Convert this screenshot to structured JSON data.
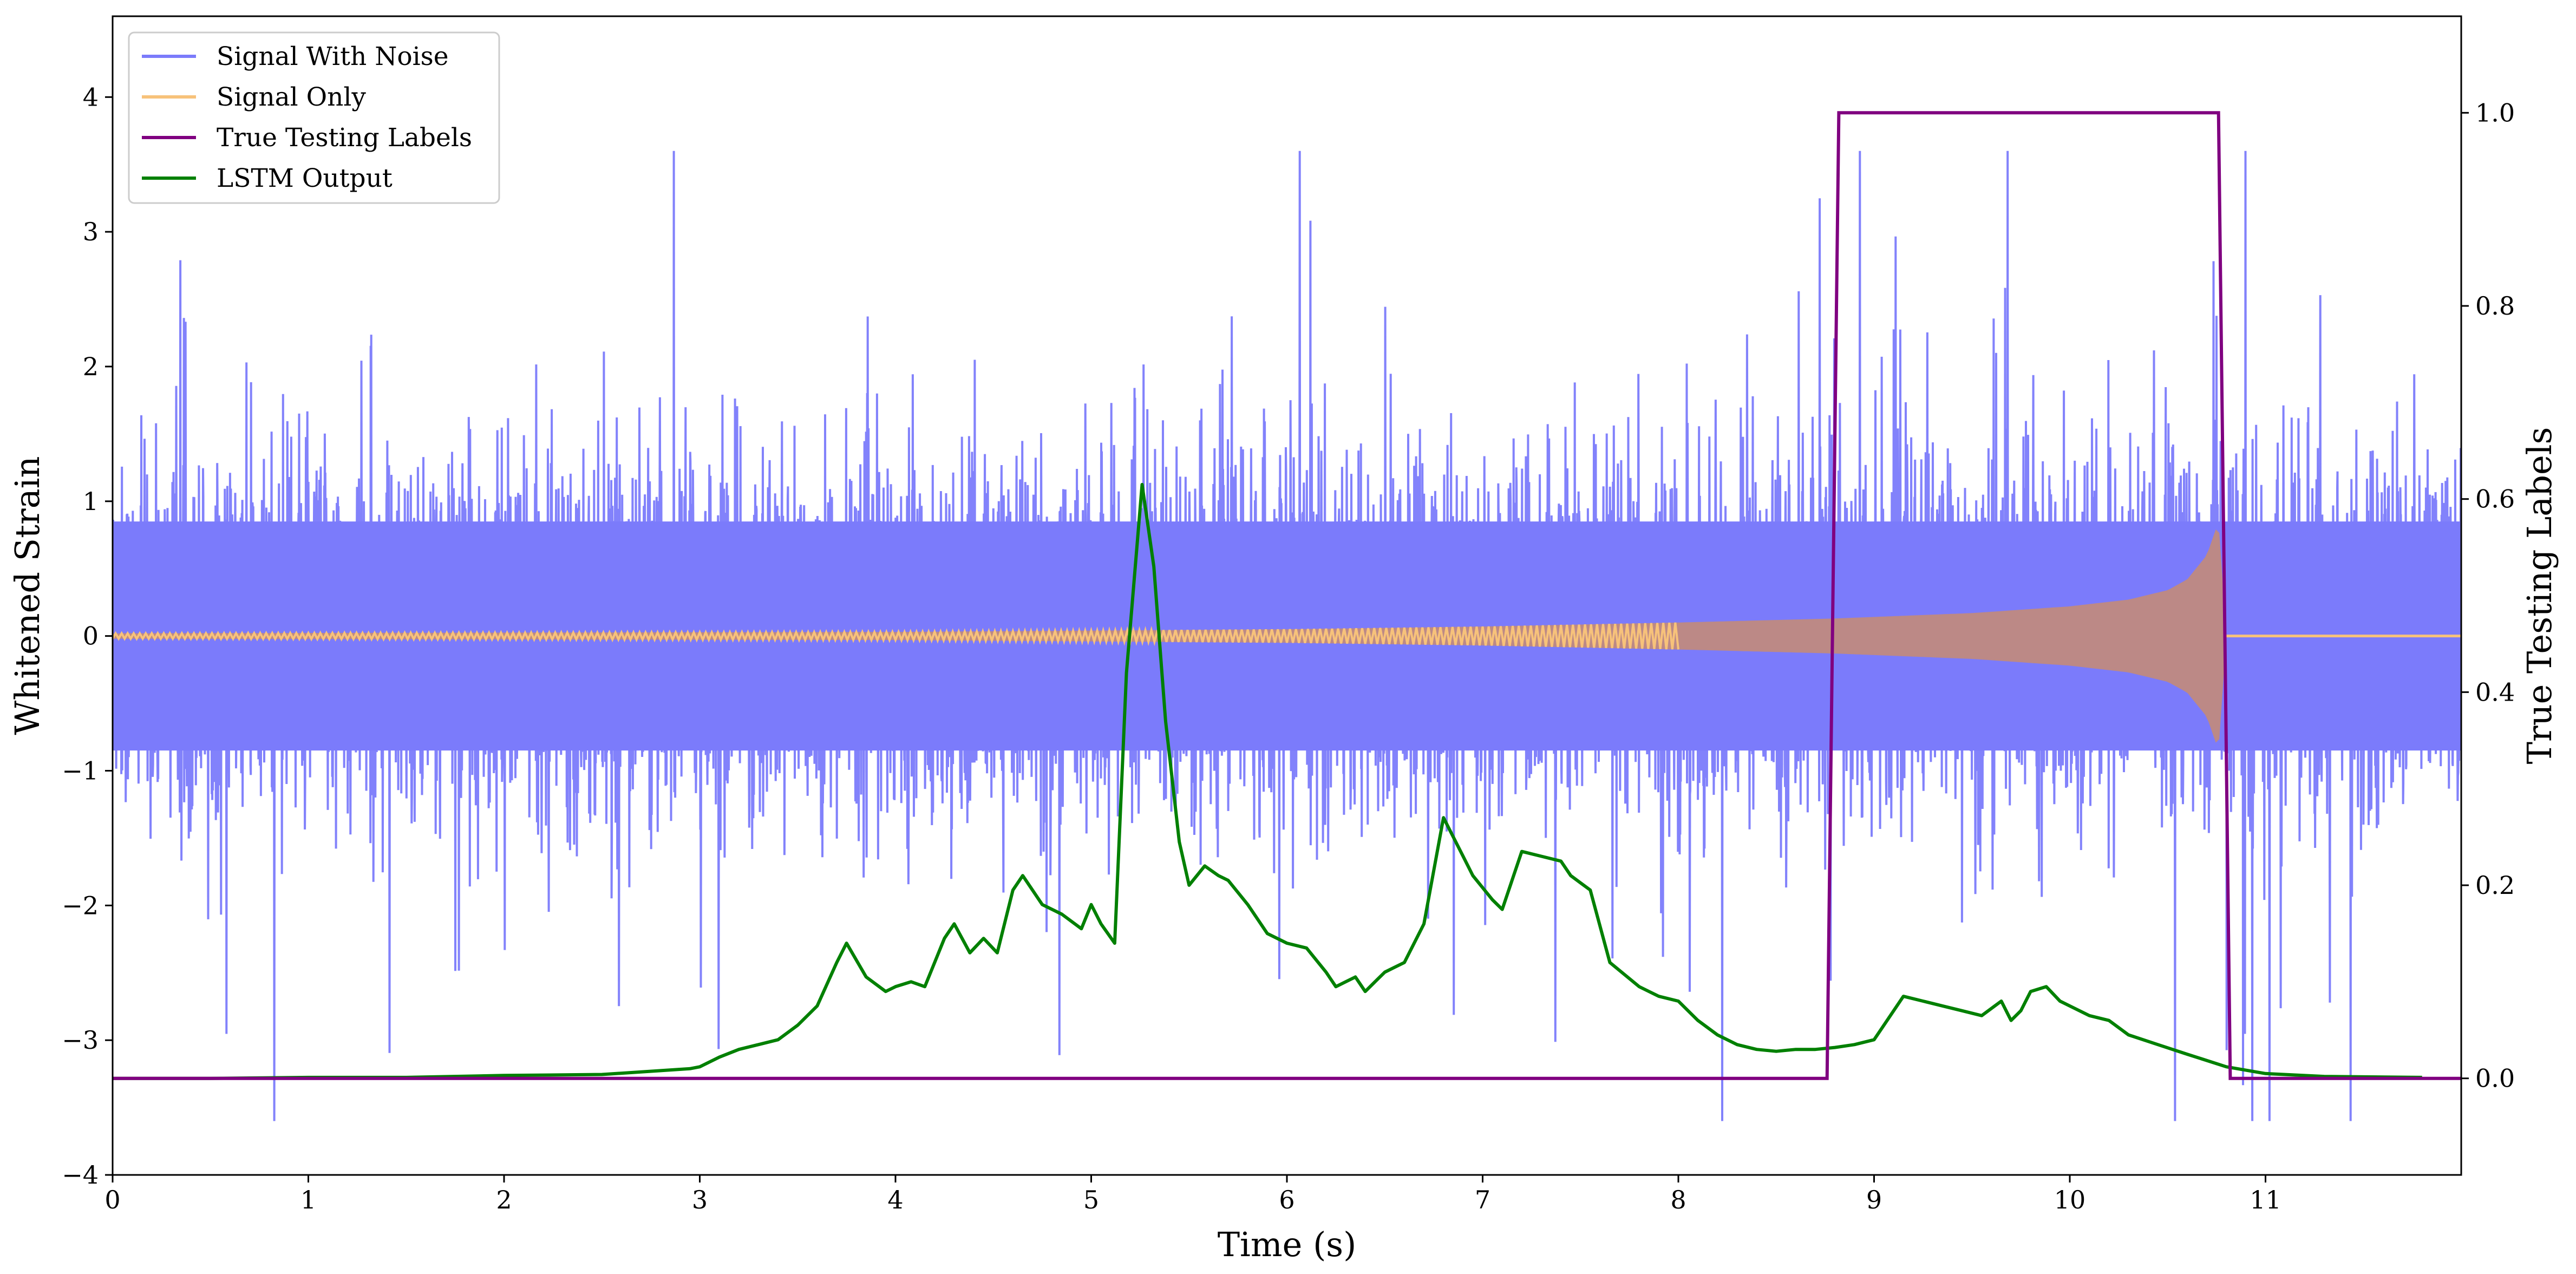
{
  "chart_data": {
    "type": "line",
    "xlabel": "Time (s)",
    "ylabel": "Whitened Strain",
    "y2label": "True Testing Labels",
    "xlim": [
      0,
      12
    ],
    "ylim": [
      -4,
      4.6
    ],
    "y2lim": [
      -0.1,
      1.1
    ],
    "xticks": [
      0,
      1,
      2,
      3,
      4,
      5,
      6,
      7,
      8,
      9,
      10,
      11
    ],
    "yticks": [
      -4,
      -3,
      -2,
      -1,
      0,
      1,
      2,
      3,
      4
    ],
    "y2ticks": [
      0.0,
      0.2,
      0.4,
      0.6,
      0.8,
      1.0
    ],
    "xtick_labels": [
      "0",
      "1",
      "2",
      "3",
      "4",
      "5",
      "6",
      "7",
      "8",
      "9",
      "10",
      "11"
    ],
    "ytick_labels": [
      "−4",
      "−3",
      "−2",
      "−1",
      "0",
      "1",
      "2",
      "3",
      "4"
    ],
    "y2tick_labels": [
      "0.0",
      "0.2",
      "0.4",
      "0.6",
      "0.8",
      "1.0"
    ],
    "legend_position": "top-left",
    "grid": false,
    "series": [
      {
        "name": "Signal With Noise",
        "axis": "left",
        "color": "#7b7bfb",
        "style": "dense noise, approx. |strain| < 1 core, peaks to about ±3.6",
        "noise_std": 0.9,
        "x_range": [
          0,
          12
        ]
      },
      {
        "name": "Signal Only",
        "axis": "left",
        "color": "#f7c27a",
        "style": "chirp envelope",
        "envelope": {
          "x": [
            0,
            2,
            4,
            5,
            6,
            7,
            8,
            8.8,
            9.5,
            10,
            10.3,
            10.5,
            10.6,
            10.7,
            10.76,
            10.8,
            12
          ],
          "y": [
            0.02,
            0.025,
            0.03,
            0.04,
            0.05,
            0.07,
            0.1,
            0.13,
            0.17,
            0.22,
            0.27,
            0.34,
            0.42,
            0.6,
            0.85,
            0,
            0
          ]
        }
      },
      {
        "name": "True Testing Labels",
        "axis": "right",
        "color": "#800080",
        "x": [
          0,
          8.76,
          8.82,
          10.76,
          10.82,
          12
        ],
        "y": [
          0,
          0,
          1,
          1,
          0,
          0
        ]
      },
      {
        "name": "LSTM Output",
        "axis": "right",
        "color": "#008000",
        "x": [
          0,
          0.5,
          1.0,
          1.5,
          2.0,
          2.5,
          2.8,
          2.95,
          3.0,
          3.1,
          3.2,
          3.3,
          3.4,
          3.5,
          3.6,
          3.7,
          3.75,
          3.85,
          3.95,
          4.0,
          4.08,
          4.15,
          4.25,
          4.3,
          4.38,
          4.45,
          4.52,
          4.6,
          4.65,
          4.75,
          4.85,
          4.95,
          5.0,
          5.05,
          5.12,
          5.18,
          5.26,
          5.32,
          5.38,
          5.45,
          5.5,
          5.58,
          5.65,
          5.7,
          5.8,
          5.9,
          6.0,
          6.1,
          6.2,
          6.25,
          6.3,
          6.35,
          6.4,
          6.45,
          6.5,
          6.55,
          6.6,
          6.65,
          6.7,
          6.8,
          6.9,
          6.95,
          7.05,
          7.1,
          7.2,
          7.3,
          7.4,
          7.45,
          7.55,
          7.65,
          7.8,
          7.9,
          8.0,
          8.1,
          8.2,
          8.3,
          8.4,
          8.5,
          8.6,
          8.7,
          8.8,
          8.9,
          9.0,
          9.05,
          9.15,
          9.25,
          9.35,
          9.45,
          9.55,
          9.65,
          9.7,
          9.75,
          9.8,
          9.88,
          9.95,
          10.0,
          10.1,
          10.2,
          10.3,
          10.45,
          10.6,
          10.8,
          11.0,
          11.3,
          11.8
        ],
        "y": [
          0.0,
          0.0,
          0.001,
          0.001,
          0.003,
          0.004,
          0.008,
          0.01,
          0.012,
          0.022,
          0.03,
          0.035,
          0.04,
          0.055,
          0.075,
          0.12,
          0.14,
          0.105,
          0.09,
          0.095,
          0.1,
          0.095,
          0.145,
          0.16,
          0.13,
          0.145,
          0.13,
          0.195,
          0.21,
          0.18,
          0.17,
          0.155,
          0.18,
          0.16,
          0.14,
          0.42,
          0.615,
          0.53,
          0.37,
          0.245,
          0.2,
          0.22,
          0.21,
          0.205,
          0.18,
          0.15,
          0.14,
          0.135,
          0.11,
          0.095,
          0.1,
          0.105,
          0.09,
          0.1,
          0.11,
          0.115,
          0.12,
          0.14,
          0.16,
          0.27,
          0.23,
          0.21,
          0.185,
          0.175,
          0.235,
          0.23,
          0.225,
          0.21,
          0.195,
          0.12,
          0.095,
          0.085,
          0.08,
          0.06,
          0.045,
          0.035,
          0.03,
          0.028,
          0.03,
          0.03,
          0.032,
          0.035,
          0.04,
          0.055,
          0.085,
          0.08,
          0.075,
          0.07,
          0.065,
          0.08,
          0.06,
          0.07,
          0.09,
          0.095,
          0.08,
          0.075,
          0.065,
          0.06,
          0.045,
          0.035,
          0.025,
          0.012,
          0.005,
          0.002,
          0.001
        ]
      }
    ]
  }
}
